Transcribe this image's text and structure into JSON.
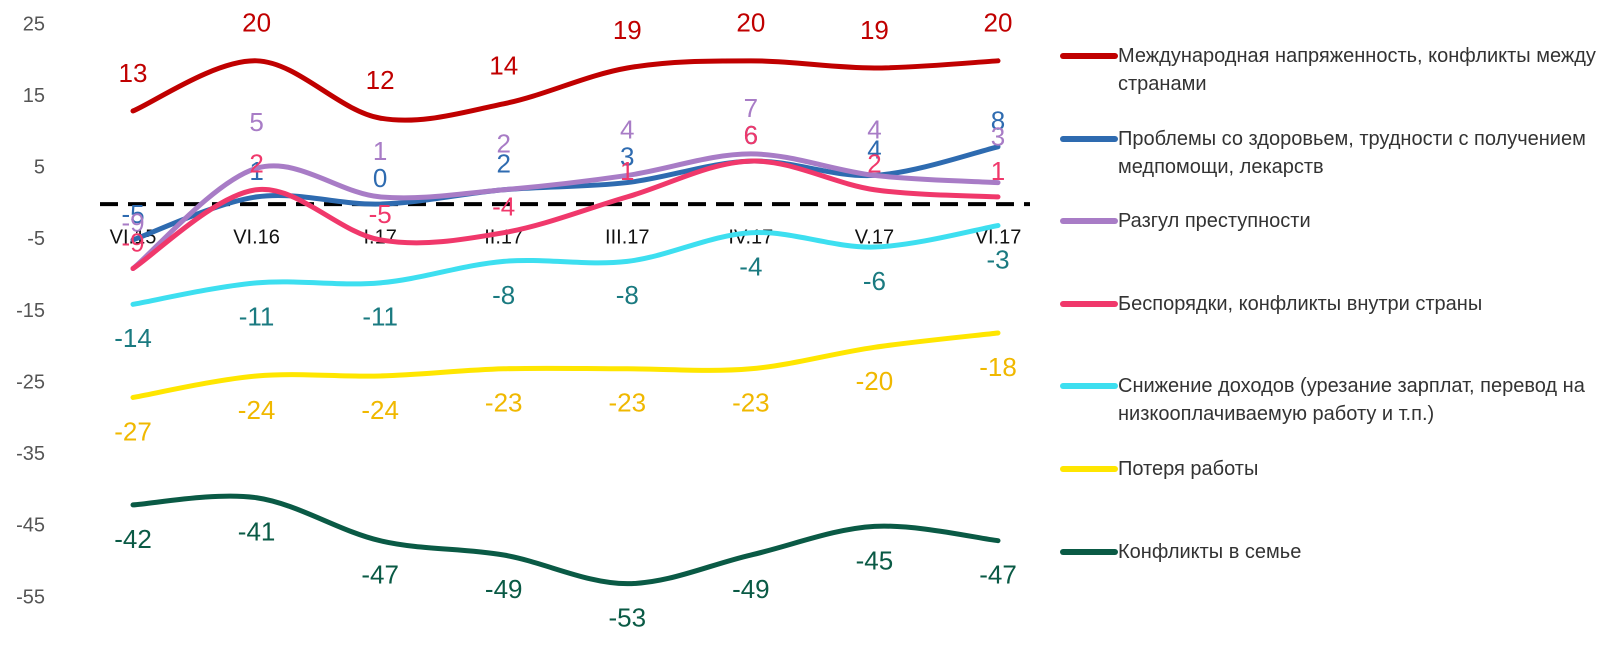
{
  "chart_data": {
    "type": "line",
    "categories": [
      "VI.15",
      "VI.16",
      "I.17",
      "II.17",
      "III.17",
      "IV.17",
      "V.17",
      "VI.17"
    ],
    "series": [
      {
        "name": "Международная напряженность, конфликты между странами",
        "color": "#c00000",
        "label_color": "#c00000",
        "values": [
          13,
          20,
          12,
          14,
          19,
          20,
          19,
          20
        ]
      },
      {
        "name": "Проблемы со здоровьем, трудности с получением медпомощи, лекарств",
        "color": "#2e6bb0",
        "label_color": "#2e6bb0",
        "values": [
          -5,
          1,
          0,
          2,
          3,
          6,
          4,
          8
        ]
      },
      {
        "name": "Разгул преступности",
        "color": "#a87cc6",
        "label_color": "#a87cc6",
        "values": [
          -9,
          5,
          1,
          2,
          4,
          7,
          4,
          3
        ]
      },
      {
        "name": "Беспорядки, конфликты внутри страны",
        "color": "#f0386b",
        "label_color": "#f0386b",
        "values": [
          -9,
          2,
          -5,
          -4,
          1,
          6,
          2,
          1
        ]
      },
      {
        "name": "Снижение доходов (урезание зарплат, перевод на низкооплачиваемую работу и т.п.)",
        "color": "#3ddff0",
        "label_color": "#1a7a80",
        "values": [
          -14,
          -11,
          -11,
          -8,
          -8,
          -4,
          -6,
          -3
        ]
      },
      {
        "name": "Потеря работы",
        "color": "#ffe600",
        "label_color": "#f0b800",
        "values": [
          -27,
          -24,
          -24,
          -23,
          -23,
          -23,
          -20,
          -18
        ]
      },
      {
        "name": "Конфликты в семье",
        "color": "#0a5a45",
        "label_color": "#0a5a45",
        "values": [
          -42,
          -41,
          -47,
          -49,
          -53,
          -49,
          -45,
          -47
        ]
      }
    ],
    "ylim": [
      -55,
      25
    ],
    "yticks": [
      25,
      15,
      5,
      -5,
      -15,
      -25,
      -35,
      -45,
      -55
    ]
  }
}
